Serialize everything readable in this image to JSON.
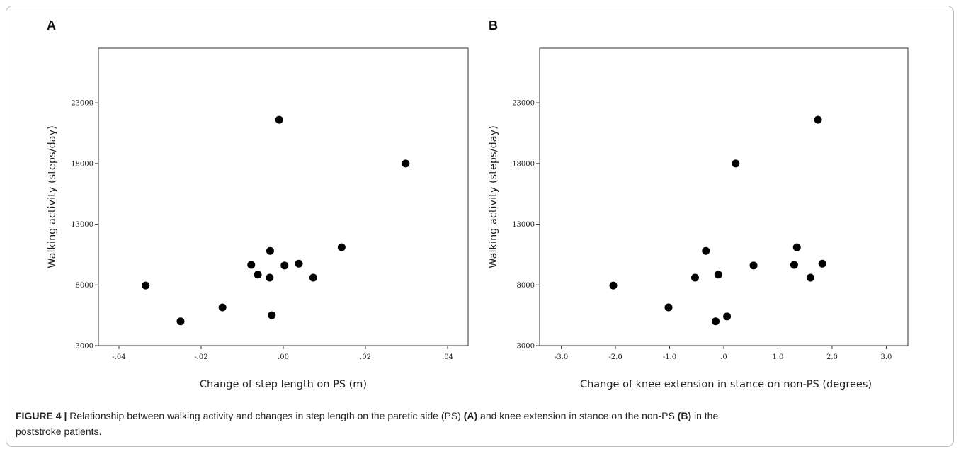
{
  "figure": {
    "panels": [
      "A",
      "B"
    ],
    "caption": {
      "label": "FIGURE 4 |",
      "line1_a": " Relationship between walking activity and changes in step length on the paretic side (PS) ",
      "line1_b": "(A)",
      "line1_c": " and knee extension in stance on the non-PS ",
      "line1_d": "(B)",
      "line1_e": " in the",
      "line2": "poststroke patients."
    }
  },
  "chart_data": [
    {
      "type": "scatter",
      "panel": "A",
      "xlabel": "Change of step length on PS (m)",
      "ylabel": "Walking activity (steps/day)",
      "xlim": [
        -0.045,
        0.045
      ],
      "ylim": [
        3000,
        27500
      ],
      "xticks": [
        -0.04,
        -0.02,
        0.0,
        0.02,
        0.04
      ],
      "xtick_labels": [
        "-.04",
        "-.02",
        ".00",
        ".02",
        ".04"
      ],
      "yticks": [
        3000,
        8000,
        13000,
        18000,
        23000
      ],
      "ytick_labels": [
        "3000",
        "8000",
        "13000",
        "18000",
        "23000"
      ],
      "grid": false,
      "points": [
        {
          "x": -0.0335,
          "y": 7950
        },
        {
          "x": -0.025,
          "y": 5000
        },
        {
          "x": -0.0148,
          "y": 6150
        },
        {
          "x": -0.0078,
          "y": 9650
        },
        {
          "x": -0.0062,
          "y": 8850
        },
        {
          "x": -0.0032,
          "y": 10800
        },
        {
          "x": -0.0033,
          "y": 8600
        },
        {
          "x": -0.0028,
          "y": 5500
        },
        {
          "x": -0.001,
          "y": 21600
        },
        {
          "x": 0.0003,
          "y": 9600
        },
        {
          "x": 0.0038,
          "y": 9750
        },
        {
          "x": 0.0073,
          "y": 8600
        },
        {
          "x": 0.0142,
          "y": 11100
        },
        {
          "x": 0.0298,
          "y": 18000
        }
      ]
    },
    {
      "type": "scatter",
      "panel": "B",
      "xlabel": "Change of knee extension in stance on non-PS (degrees)",
      "ylabel": "Walking activity (steps/day)",
      "xlim": [
        -3.4,
        3.4
      ],
      "ylim": [
        3000,
        27500
      ],
      "xticks": [
        -3.0,
        -2.0,
        -1.0,
        0.0,
        1.0,
        2.0,
        3.0
      ],
      "xtick_labels": [
        "-3.0",
        "-2.0",
        "-1.0",
        ".0",
        "1.0",
        "2.0",
        "3.0"
      ],
      "yticks": [
        3000,
        8000,
        13000,
        18000,
        23000
      ],
      "ytick_labels": [
        "3000",
        "8000",
        "13000",
        "18000",
        "23000"
      ],
      "grid": false,
      "points": [
        {
          "x": -2.04,
          "y": 7950
        },
        {
          "x": -1.02,
          "y": 6150
        },
        {
          "x": -0.53,
          "y": 8600
        },
        {
          "x": -0.33,
          "y": 10800
        },
        {
          "x": -0.15,
          "y": 5000
        },
        {
          "x": -0.1,
          "y": 8850
        },
        {
          "x": 0.06,
          "y": 5400
        },
        {
          "x": 0.22,
          "y": 18000
        },
        {
          "x": 0.55,
          "y": 9600
        },
        {
          "x": 1.3,
          "y": 9650
        },
        {
          "x": 1.35,
          "y": 11100
        },
        {
          "x": 1.6,
          "y": 8600
        },
        {
          "x": 1.74,
          "y": 21600
        },
        {
          "x": 1.82,
          "y": 9750
        }
      ]
    }
  ]
}
